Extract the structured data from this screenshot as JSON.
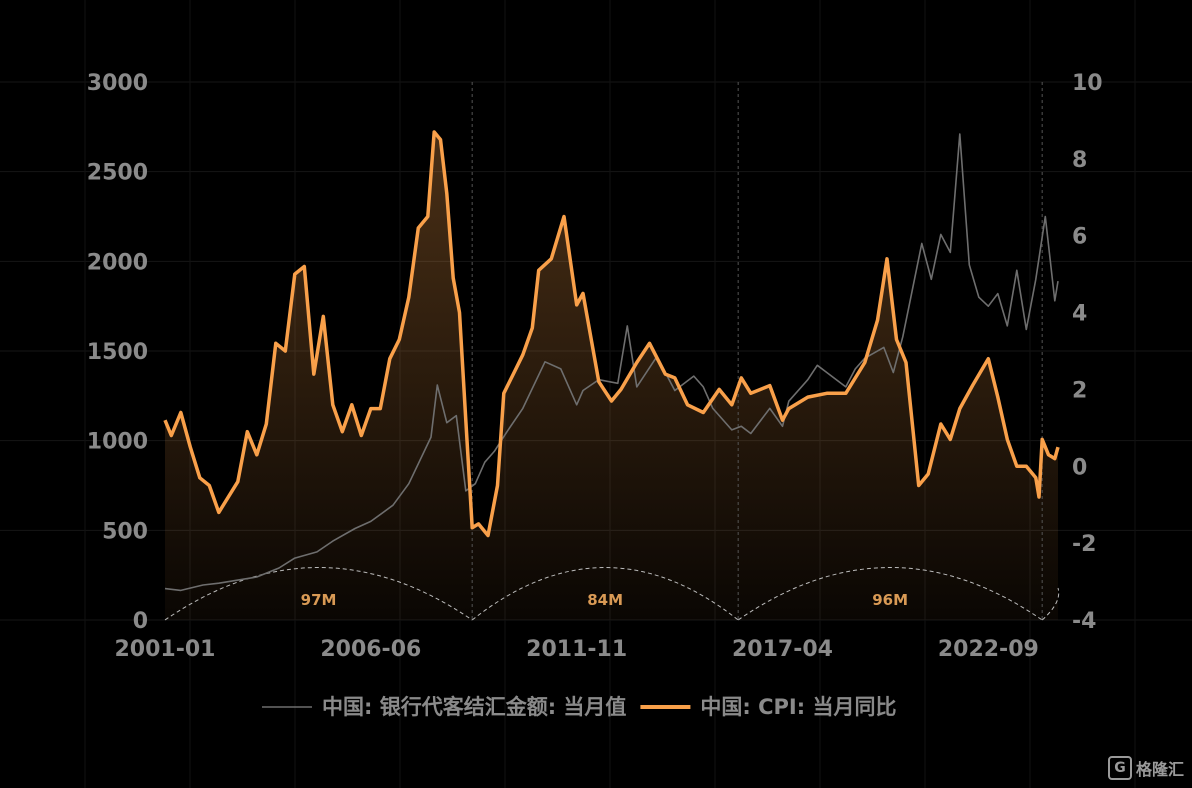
{
  "chart_data": {
    "type": "line",
    "x_ticks": [
      "2001-01",
      "2006-06",
      "2011-11",
      "2017-04",
      "2022-09"
    ],
    "y_left": {
      "ticks": [
        "0",
        "500",
        "1000",
        "1500",
        "2000",
        "2500",
        "3000"
      ],
      "ylim": [
        0,
        3000
      ]
    },
    "y_right": {
      "ticks": [
        "-4",
        "-2",
        "0",
        "2",
        "4",
        "6",
        "8",
        "10"
      ],
      "ylim": [
        -4,
        10
      ]
    },
    "x_range": [
      "2001-01",
      "2024-07"
    ],
    "series": [
      {
        "name": "中国: 银行代客结汇金额: 当月值",
        "axis": "left",
        "color": "#6e6e6e",
        "points": [
          [
            "2001-01",
            175
          ],
          [
            "2001-06",
            165
          ],
          [
            "2002-01",
            195
          ],
          [
            "2002-06",
            205
          ],
          [
            "2003-01",
            225
          ],
          [
            "2003-06",
            240
          ],
          [
            "2004-01",
            290
          ],
          [
            "2004-06",
            345
          ],
          [
            "2005-01",
            380
          ],
          [
            "2005-06",
            440
          ],
          [
            "2006-01",
            510
          ],
          [
            "2006-06",
            550
          ],
          [
            "2007-01",
            640
          ],
          [
            "2007-06",
            760
          ],
          [
            "2008-01",
            1020
          ],
          [
            "2008-03",
            1310
          ],
          [
            "2008-06",
            1100
          ],
          [
            "2008-09",
            1140
          ],
          [
            "2008-12",
            720
          ],
          [
            "2009-03",
            760
          ],
          [
            "2009-06",
            880
          ],
          [
            "2009-09",
            940
          ],
          [
            "2010-01",
            1050
          ],
          [
            "2010-06",
            1180
          ],
          [
            "2011-01",
            1440
          ],
          [
            "2011-06",
            1400
          ],
          [
            "2011-11",
            1200
          ],
          [
            "2012-01",
            1280
          ],
          [
            "2012-06",
            1340
          ],
          [
            "2012-12",
            1320
          ],
          [
            "2013-03",
            1640
          ],
          [
            "2013-06",
            1300
          ],
          [
            "2013-12",
            1460
          ],
          [
            "2014-03",
            1380
          ],
          [
            "2014-06",
            1280
          ],
          [
            "2014-12",
            1360
          ],
          [
            "2015-03",
            1300
          ],
          [
            "2015-06",
            1180
          ],
          [
            "2015-09",
            1120
          ],
          [
            "2015-12",
            1060
          ],
          [
            "2016-03",
            1080
          ],
          [
            "2016-06",
            1040
          ],
          [
            "2016-12",
            1180
          ],
          [
            "2017-04",
            1080
          ],
          [
            "2017-06",
            1220
          ],
          [
            "2017-12",
            1340
          ],
          [
            "2018-03",
            1420
          ],
          [
            "2018-06",
            1380
          ],
          [
            "2018-12",
            1300
          ],
          [
            "2019-03",
            1400
          ],
          [
            "2019-06",
            1460
          ],
          [
            "2019-12",
            1520
          ],
          [
            "2020-03",
            1380
          ],
          [
            "2020-06",
            1580
          ],
          [
            "2020-12",
            2100
          ],
          [
            "2021-03",
            1900
          ],
          [
            "2021-06",
            2150
          ],
          [
            "2021-09",
            2050
          ],
          [
            "2021-12",
            2710
          ],
          [
            "2022-03",
            1980
          ],
          [
            "2022-06",
            1800
          ],
          [
            "2022-09",
            1750
          ],
          [
            "2022-12",
            1820
          ],
          [
            "2023-03",
            1640
          ],
          [
            "2023-06",
            1950
          ],
          [
            "2023-09",
            1620
          ],
          [
            "2023-12",
            1900
          ],
          [
            "2024-03",
            2250
          ],
          [
            "2024-06",
            1780
          ],
          [
            "2024-07",
            1890
          ]
        ]
      },
      {
        "name": "中国: CPI: 当月同比",
        "axis": "right",
        "color": "#f9a04a",
        "points": [
          [
            "2001-01",
            1.2
          ],
          [
            "2001-03",
            0.8
          ],
          [
            "2001-06",
            1.4
          ],
          [
            "2001-09",
            0.5
          ],
          [
            "2001-12",
            -0.3
          ],
          [
            "2002-03",
            -0.5
          ],
          [
            "2002-06",
            -1.2
          ],
          [
            "2002-12",
            -0.4
          ],
          [
            "2003-03",
            0.9
          ],
          [
            "2003-06",
            0.3
          ],
          [
            "2003-09",
            1.1
          ],
          [
            "2003-12",
            3.2
          ],
          [
            "2004-03",
            3.0
          ],
          [
            "2004-06",
            5.0
          ],
          [
            "2004-09",
            5.2
          ],
          [
            "2004-12",
            2.4
          ],
          [
            "2005-03",
            3.9
          ],
          [
            "2005-06",
            1.6
          ],
          [
            "2005-09",
            0.9
          ],
          [
            "2005-12",
            1.6
          ],
          [
            "2006-03",
            0.8
          ],
          [
            "2006-06",
            1.5
          ],
          [
            "2006-09",
            1.5
          ],
          [
            "2006-12",
            2.8
          ],
          [
            "2007-03",
            3.3
          ],
          [
            "2007-06",
            4.4
          ],
          [
            "2007-09",
            6.2
          ],
          [
            "2007-12",
            6.5
          ],
          [
            "2008-02",
            8.7
          ],
          [
            "2008-04",
            8.5
          ],
          [
            "2008-06",
            7.1
          ],
          [
            "2008-08",
            4.9
          ],
          [
            "2008-10",
            4.0
          ],
          [
            "2008-12",
            1.2
          ],
          [
            "2009-02",
            -1.6
          ],
          [
            "2009-04",
            -1.5
          ],
          [
            "2009-07",
            -1.8
          ],
          [
            "2009-10",
            -0.5
          ],
          [
            "2009-12",
            1.9
          ],
          [
            "2010-03",
            2.4
          ],
          [
            "2010-06",
            2.9
          ],
          [
            "2010-09",
            3.6
          ],
          [
            "2010-11",
            5.1
          ],
          [
            "2011-03",
            5.4
          ],
          [
            "2011-07",
            6.5
          ],
          [
            "2011-11",
            4.2
          ],
          [
            "2012-01",
            4.5
          ],
          [
            "2012-06",
            2.2
          ],
          [
            "2012-10",
            1.7
          ],
          [
            "2013-01",
            2.0
          ],
          [
            "2013-06",
            2.7
          ],
          [
            "2013-10",
            3.2
          ],
          [
            "2014-03",
            2.4
          ],
          [
            "2014-06",
            2.3
          ],
          [
            "2014-10",
            1.6
          ],
          [
            "2015-03",
            1.4
          ],
          [
            "2015-08",
            2.0
          ],
          [
            "2015-12",
            1.6
          ],
          [
            "2016-03",
            2.3
          ],
          [
            "2016-06",
            1.9
          ],
          [
            "2016-12",
            2.1
          ],
          [
            "2017-04",
            1.2
          ],
          [
            "2017-06",
            1.5
          ],
          [
            "2017-12",
            1.8
          ],
          [
            "2018-06",
            1.9
          ],
          [
            "2018-12",
            1.9
          ],
          [
            "2019-06",
            2.7
          ],
          [
            "2019-10",
            3.8
          ],
          [
            "2020-01",
            5.4
          ],
          [
            "2020-04",
            3.3
          ],
          [
            "2020-07",
            2.7
          ],
          [
            "2020-11",
            -0.5
          ],
          [
            "2021-02",
            -0.2
          ],
          [
            "2021-06",
            1.1
          ],
          [
            "2021-09",
            0.7
          ],
          [
            "2021-12",
            1.5
          ],
          [
            "2022-04",
            2.1
          ],
          [
            "2022-09",
            2.8
          ],
          [
            "2022-12",
            1.8
          ],
          [
            "2023-03",
            0.7
          ],
          [
            "2023-06",
            0.0
          ],
          [
            "2023-09",
            0.0
          ],
          [
            "2023-12",
            -0.3
          ],
          [
            "2024-01",
            -0.8
          ],
          [
            "2024-02",
            0.7
          ],
          [
            "2024-04",
            0.3
          ],
          [
            "2024-06",
            0.2
          ],
          [
            "2024-07",
            0.5
          ]
        ]
      }
    ],
    "cycles": [
      {
        "label": "97M",
        "start": "2001-01",
        "end": "2009-02"
      },
      {
        "label": "84M",
        "start": "2009-02",
        "end": "2016-02"
      },
      {
        "label": "96M",
        "start": "2016-02",
        "end": "2024-02"
      }
    ],
    "legend_position": "bottom"
  },
  "watermark": "格隆汇"
}
